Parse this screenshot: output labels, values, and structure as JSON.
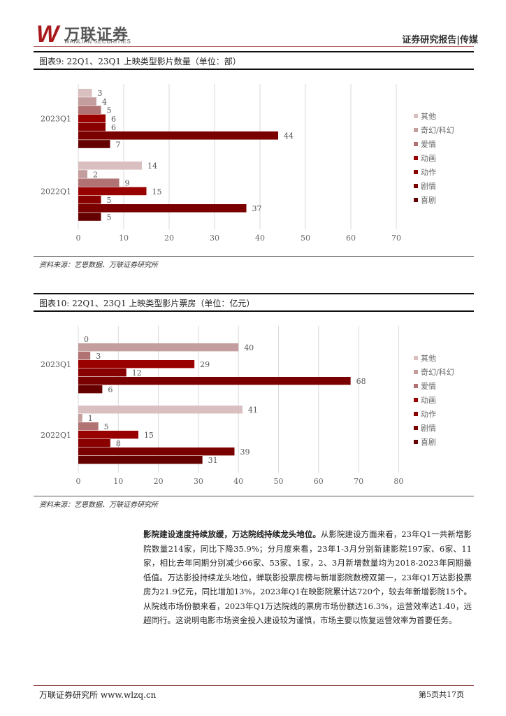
{
  "header": {
    "logo_mark": "W",
    "logo_cn": "万联证券",
    "logo_en": "WANLIAN SECURITIES",
    "report_type": "证券研究报告|传媒"
  },
  "charts_meta": [
    {
      "title": "图表9:   22Q1、23Q1 上映类型影片数量（单位：部）",
      "source": "资料来源：艺恩数据、万联证券研究所"
    },
    {
      "title": "图表10:  22Q1、23Q1 上映类型影片票房（单位：亿元）",
      "source": "资料来源：艺恩数据、万联证券研究所"
    }
  ],
  "chart_data": [
    {
      "type": "bar",
      "orientation": "horizontal",
      "title": "",
      "xlim": [
        0,
        70
      ],
      "xticks": [
        0,
        10,
        20,
        30,
        40,
        50,
        60,
        70
      ],
      "grid": true,
      "legend_position": "right",
      "categories": [
        "2023Q1",
        "2022Q1"
      ],
      "series": [
        {
          "name": "其他",
          "color": "#d9bfbf",
          "values": [
            3,
            14
          ]
        },
        {
          "name": "奇幻/科幻",
          "color": "#c49e9e",
          "values": [
            4,
            2
          ]
        },
        {
          "name": "爱情",
          "color": "#b07272",
          "values": [
            5,
            9
          ]
        },
        {
          "name": "动画",
          "color": "#990000",
          "values": [
            6,
            15
          ]
        },
        {
          "name": "动作",
          "color": "#880000",
          "values": [
            6,
            5
          ]
        },
        {
          "name": "剧情",
          "color": "#7a0000",
          "values": [
            44,
            37
          ]
        },
        {
          "name": "喜剧",
          "color": "#640000",
          "values": [
            7,
            5
          ]
        }
      ]
    },
    {
      "type": "bar",
      "orientation": "horizontal",
      "title": "",
      "xlim": [
        0,
        80
      ],
      "xticks": [
        0,
        10,
        20,
        30,
        40,
        50,
        60,
        70,
        80
      ],
      "grid": true,
      "legend_position": "right",
      "categories": [
        "2023Q1",
        "2022Q1"
      ],
      "series": [
        {
          "name": "其他",
          "color": "#d9bfbf",
          "values": [
            0,
            41
          ]
        },
        {
          "name": "奇幻/科幻",
          "color": "#c49e9e",
          "values": [
            40,
            1
          ]
        },
        {
          "name": "爱情",
          "color": "#b07272",
          "values": [
            3,
            5
          ]
        },
        {
          "name": "动画",
          "color": "#990000",
          "values": [
            29,
            15
          ]
        },
        {
          "name": "动作",
          "color": "#880000",
          "values": [
            12,
            8
          ]
        },
        {
          "name": "剧情",
          "color": "#7a0000",
          "values": [
            68,
            39
          ]
        },
        {
          "name": "喜剧",
          "color": "#640000",
          "values": [
            6,
            31
          ]
        }
      ]
    }
  ],
  "body": {
    "lead": "影院建设速度持续放缓，万达院线持续龙头地位。",
    "text": "从影院建设方面来看，23年Q1一共新增影院数量214家，同比下降35.9%；分月度来看，23年1-3月分别新建影院197家、6家、11家，相比去年同期分别减少66家、53家、1家，2、3月新增数量均为2018-2023年同期最低值。万达影投持续龙头地位，蝉联影投票房榜与新增影院数榜双第一，23年Q1万达影投票房为21.9亿元，同比增加13%，2023年Q1在映影院累计达720个，较去年新增影院15个。从院线市场份额来看，2023年Q1万达院线的票房市场份额达16.3%，运营效率达1.40，远超同行。这说明电影市场资金投入建设较为谨慎，市场主要以恢复运营效率为首要任务。"
  },
  "footer": {
    "left": "万联证券研究所 www.wlzq.cn",
    "right": "第5页共17页"
  }
}
